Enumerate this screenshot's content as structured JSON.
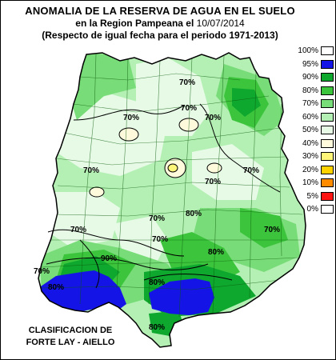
{
  "title": {
    "line1": "ANOMALIA DE LA RESERVA DE AGUA EN EL SUELO",
    "line2_prefix": "en la Region Pampeana el",
    "line2_date": "10/07/2014",
    "line3": "(Respecto de igual fecha para el periodo 1971-2013)"
  },
  "credit": {
    "line1": "CLASIFICACION DE",
    "line2": "FORTE LAY - AIELLO"
  },
  "legend": [
    {
      "label": "100%",
      "color": "#ffffff"
    },
    {
      "label": "95%",
      "color": "#1414e6"
    },
    {
      "label": "90%",
      "color": "#0fa82f"
    },
    {
      "label": "80%",
      "color": "#3cc53c"
    },
    {
      "label": "70%",
      "color": "#78dc78"
    },
    {
      "label": "60%",
      "color": "#b4f0b4"
    },
    {
      "label": "50%",
      "color": "#e6fae6"
    },
    {
      "label": "40%",
      "color": "#fffadc"
    },
    {
      "label": "30%",
      "color": "#fff578"
    },
    {
      "label": "20%",
      "color": "#ffd200"
    },
    {
      "label": "10%",
      "color": "#ff8c00"
    },
    {
      "label": "5%",
      "color": "#ff1414"
    },
    {
      "label": "0%",
      "color": "#ffffff"
    }
  ],
  "isolines": {
    "labels": [
      "70%",
      "70%",
      "70%",
      "70%",
      "70%",
      "70%",
      "70%",
      "70%",
      "70%",
      "70%",
      "70%",
      "80%",
      "80%",
      "80%",
      "80%",
      "80%",
      "90%",
      "70%"
    ]
  }
}
